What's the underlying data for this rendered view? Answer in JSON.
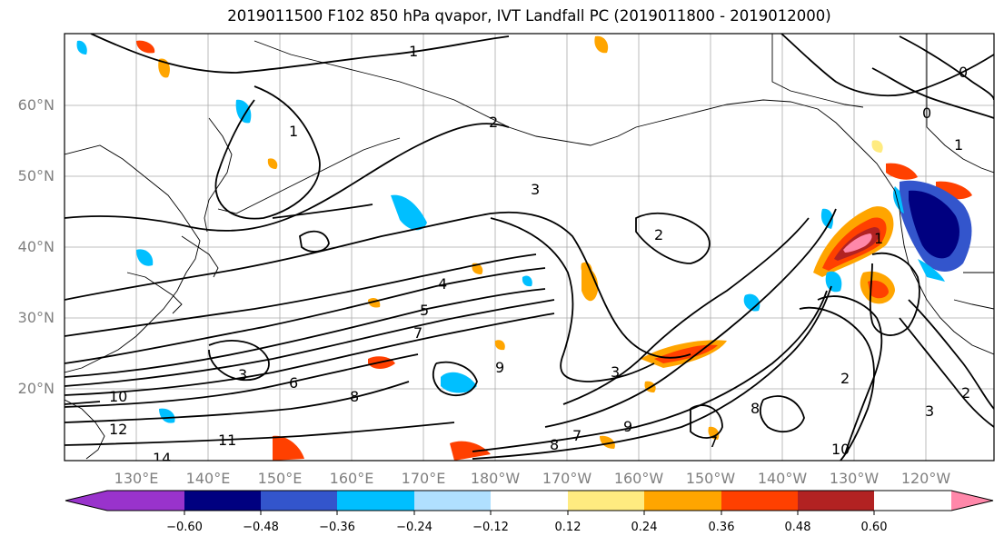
{
  "title": "2019011500 F102 850 hPa qvapor, IVT Landfall PC (2019011800 - 2019012000)",
  "map": {
    "lat_labels": [
      "60°N",
      "50°N",
      "40°N",
      "30°N",
      "20°N"
    ],
    "lon_labels": [
      "130°E",
      "140°E",
      "150°E",
      "160°E",
      "170°E",
      "180°W",
      "170°W",
      "160°W",
      "150°W",
      "140°W",
      "130°W",
      "120°W"
    ],
    "contour_labels": [
      "1",
      "1",
      "2",
      "3",
      "4",
      "5",
      "6",
      "7",
      "8",
      "9",
      "10",
      "11",
      "12",
      "14",
      "3",
      "2",
      "1",
      "0",
      "0",
      "1",
      "2",
      "3",
      "2",
      "8",
      "7",
      "10",
      "9",
      "3",
      "8",
      "7"
    ]
  },
  "colorbar": {
    "colors": [
      "#9933cc",
      "#000080",
      "#3355cc",
      "#00bfff",
      "#b0e0ff",
      "#ffffff",
      "#ffeb80",
      "#ffa500",
      "#ff4000",
      "#b22222",
      "#ff88aa"
    ],
    "tick_labels": [
      "-0.60",
      "-0.48",
      "-0.36",
      "-0.24",
      "-0.12",
      "0.12",
      "0.24",
      "0.36",
      "0.48",
      "0.60"
    ]
  }
}
